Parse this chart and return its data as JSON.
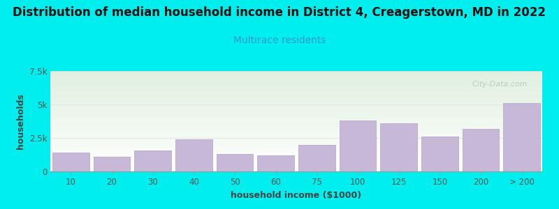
{
  "title": "Distribution of median household income in District 4, Creagerstown, MD in 2022",
  "subtitle": "Multirace residents",
  "xlabel": "household income ($1000)",
  "ylabel": "households",
  "background_color": "#00EEEE",
  "plot_bg_gradient_top": "#e0f0e0",
  "plot_bg_gradient_bottom": "#ffffff",
  "bar_color": "#c8b8d8",
  "bar_edge_color": "#b0a0c8",
  "watermark": "City-Data.com",
  "categories": [
    "10",
    "20",
    "30",
    "40",
    "50",
    "60",
    "75",
    "100",
    "125",
    "150",
    "200",
    "> 200"
  ],
  "values": [
    1400,
    1100,
    1550,
    2400,
    1300,
    1200,
    2000,
    3800,
    3600,
    2600,
    3200,
    5100
  ],
  "bar_widths": [
    1,
    1,
    1,
    1,
    1,
    1,
    1,
    1,
    1,
    1,
    1,
    1
  ],
  "ylim": [
    0,
    7500
  ],
  "yticks": [
    0,
    2500,
    5000,
    7500
  ],
  "ytick_labels": [
    "0",
    "2.5k",
    "5k",
    "7.5k"
  ],
  "title_fontsize": 12,
  "subtitle_fontsize": 10,
  "axis_label_fontsize": 9,
  "tick_fontsize": 8.5,
  "title_color": "#111111",
  "subtitle_color": "#3399cc",
  "axis_label_color": "#444444",
  "tick_color": "#555555",
  "watermark_color": "#bbbbbb",
  "spine_color": "#999999",
  "gridline_color": "#dddddd"
}
